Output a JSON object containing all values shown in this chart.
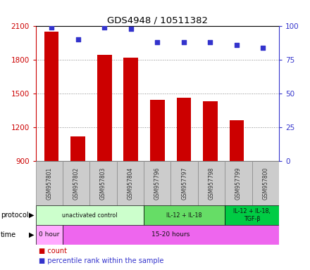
{
  "title": "GDS4948 / 10511382",
  "samples": [
    "GSM957801",
    "GSM957802",
    "GSM957803",
    "GSM957804",
    "GSM957796",
    "GSM957797",
    "GSM957798",
    "GSM957799",
    "GSM957800"
  ],
  "counts": [
    2050,
    1120,
    1840,
    1820,
    1440,
    1460,
    1430,
    1260,
    900
  ],
  "percentile_ranks": [
    99,
    90,
    99,
    98,
    88,
    88,
    88,
    86,
    84
  ],
  "ylim_left": [
    900,
    2100
  ],
  "ylim_right": [
    0,
    100
  ],
  "yticks_left": [
    900,
    1200,
    1500,
    1800,
    2100
  ],
  "yticks_right": [
    0,
    25,
    50,
    75,
    100
  ],
  "bar_color": "#cc0000",
  "dot_color": "#3333cc",
  "grid_color": "#888888",
  "protocol_groups": [
    {
      "label": "unactivated control",
      "start": 0,
      "end": 4,
      "color": "#ccffcc"
    },
    {
      "label": "IL-12 + IL-18",
      "start": 4,
      "end": 7,
      "color": "#66dd66"
    },
    {
      "label": "IL-12 + IL-18,\nTGF-β",
      "start": 7,
      "end": 9,
      "color": "#00cc44"
    }
  ],
  "time_groups": [
    {
      "label": "0 hour",
      "start": 0,
      "end": 1,
      "color": "#ffaaff"
    },
    {
      "label": "15-20 hours",
      "start": 1,
      "end": 9,
      "color": "#ee66ee"
    }
  ],
  "left_axis_color": "#cc0000",
  "right_axis_color": "#3333cc",
  "bar_width": 0.55,
  "cell_bg": "#cccccc",
  "cell_edge": "#888888"
}
